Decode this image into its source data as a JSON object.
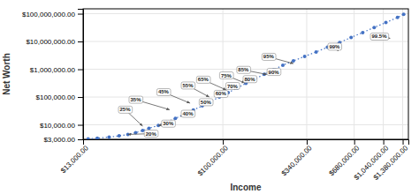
{
  "chart_data": {
    "type": "line",
    "xlabel": "Income",
    "ylabel": "Net Worth",
    "log": true,
    "grid": true,
    "color": "#4472c4",
    "marker": "point",
    "line_style": "dotted",
    "xlim": [
      13000,
      1500000
    ],
    "ylim": [
      3000,
      150000000
    ],
    "xticks": [
      {
        "value": 13000,
        "label": "$13,000.00"
      },
      {
        "value": 100000,
        "label": "$100,000.00"
      },
      {
        "value": 340000,
        "label": "$340,000.00"
      },
      {
        "value": 680000,
        "label": "$680,000.00"
      },
      {
        "value": 1040000,
        "label": "$1,040,000.00"
      },
      {
        "value": 1380000,
        "label": "$1,380,000.00"
      }
    ],
    "yticks": [
      {
        "value": 3000,
        "label": "$3,000.00"
      },
      {
        "value": 10000,
        "label": "$10,000.00"
      },
      {
        "value": 100000,
        "label": "$100,000.00"
      },
      {
        "value": 1000000,
        "label": "$1,000,000.00"
      },
      {
        "value": 10000000,
        "label": "$10,000,000.00"
      },
      {
        "value": 100000000,
        "label": "$100,000,000.00"
      }
    ],
    "x": [
      14000,
      16000,
      19000,
      22000,
      25000,
      28000,
      31000,
      34000,
      39000,
      44000,
      50000,
      57000,
      65000,
      74000,
      84000,
      95000,
      108000,
      123000,
      140000,
      160000,
      183000,
      210000,
      240000,
      280000,
      330000,
      390000,
      460000,
      550000,
      650000,
      770000,
      910000,
      1080000,
      1280000,
      1400000
    ],
    "values": [
      3100,
      3300,
      3600,
      4000,
      4500,
      5200,
      6200,
      7500,
      9500,
      12500,
      17000,
      24000,
      34000,
      48000,
      70000,
      100000,
      145000,
      210000,
      310000,
      450000,
      660000,
      960000,
      1400000,
      2000000,
      2900000,
      4200000,
      6200000,
      9200000,
      14000000,
      21000000,
      32000000,
      48000000,
      73000000,
      95000000
    ],
    "annotations": [
      {
        "text": "20%",
        "x": 25000,
        "y": 4500,
        "text_x": 35000,
        "text_y": 4800
      },
      {
        "text": "25%",
        "x": 31000,
        "y": 9000,
        "text_x": 24000,
        "text_y": 35000
      },
      {
        "text": "30%",
        "x": 39000,
        "y": 9500,
        "text_x": 45000,
        "text_y": 11000
      },
      {
        "text": "35%",
        "x": 46000,
        "y": 35000,
        "text_x": 28000,
        "text_y": 80000
      },
      {
        "text": "40%",
        "x": 54000,
        "y": 20000,
        "text_x": 60000,
        "text_y": 25000
      },
      {
        "text": "45%",
        "x": 62000,
        "y": 60000,
        "text_x": 42000,
        "text_y": 150000
      },
      {
        "text": "50%",
        "x": 72000,
        "y": 50000,
        "text_x": 78000,
        "text_y": 65000
      },
      {
        "text": "55%",
        "x": 82000,
        "y": 100000,
        "text_x": 60000,
        "text_y": 260000
      },
      {
        "text": "60%",
        "x": 93000,
        "y": 100000,
        "text_x": 97000,
        "text_y": 130000
      },
      {
        "text": "65%",
        "x": 105000,
        "y": 180000,
        "text_x": 75000,
        "text_y": 420000
      },
      {
        "text": "70%",
        "x": 120000,
        "y": 180000,
        "text_x": 115000,
        "text_y": 250000
      },
      {
        "text": "75%",
        "x": 138000,
        "y": 320000,
        "text_x": 105000,
        "text_y": 600000
      },
      {
        "text": "80%",
        "x": 162000,
        "y": 350000,
        "text_x": 148000,
        "text_y": 440000
      },
      {
        "text": "85%",
        "x": 190000,
        "y": 650000,
        "text_x": 135000,
        "text_y": 950000
      },
      {
        "text": "90%",
        "x": 225000,
        "y": 700000,
        "text_x": 210000,
        "text_y": 800000
      },
      {
        "text": "95%",
        "x": 280000,
        "y": 1600000,
        "text_x": 195000,
        "text_y": 2800000
      },
      {
        "text": "99%",
        "x": 540000,
        "y": 4500000,
        "text_x": 510000,
        "text_y": 6500000
      },
      {
        "text": "99.5%",
        "x": 1150000,
        "y": 13000000,
        "text_x": 980000,
        "text_y": 15000000
      }
    ]
  }
}
